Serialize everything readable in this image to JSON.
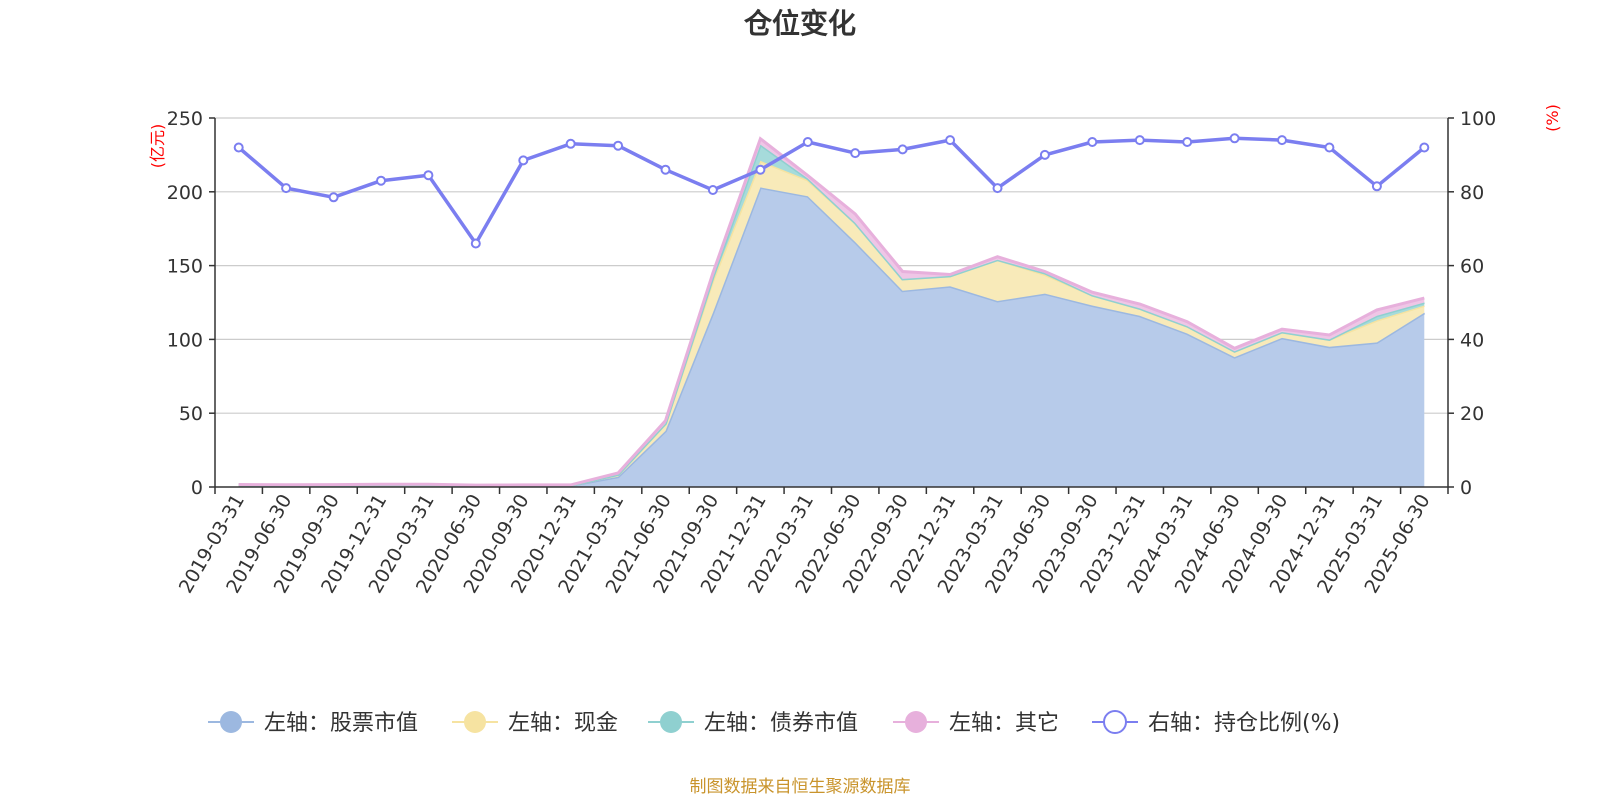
{
  "colors": {
    "stock": "#9cb8e0",
    "stock_fill": "#b7cbea",
    "cash": "#f6e3a1",
    "cash_fill": "#f8eab9",
    "bond": "#8fd0d0",
    "bond_fill": "#a6dbdb",
    "other": "#e7b0dc",
    "other_fill": "#efc6e6",
    "ratio": "#7b7ef0",
    "axis_unit": "#ff0000",
    "source": "#c9942c"
  },
  "chart_data": {
    "type": "area",
    "title": "仓位变化",
    "categories": [
      "2019-03-31",
      "2019-06-30",
      "2019-09-30",
      "2019-12-31",
      "2020-03-31",
      "2020-06-30",
      "2020-09-30",
      "2020-12-31",
      "2021-03-31",
      "2021-06-30",
      "2021-09-30",
      "2021-12-31",
      "2022-03-31",
      "2022-06-30",
      "2022-09-30",
      "2022-12-31",
      "2023-03-31",
      "2023-06-30",
      "2023-09-30",
      "2023-12-31",
      "2024-03-31",
      "2024-06-30",
      "2024-09-30",
      "2024-12-31",
      "2025-03-31",
      "2025-06-30"
    ],
    "left_axis": {
      "unit": "(亿元)",
      "ylim": [
        0,
        250
      ],
      "ticks": [
        "0",
        "50",
        "100",
        "150",
        "200",
        "250"
      ]
    },
    "right_axis": {
      "unit": "(%)",
      "ylim": [
        0,
        100
      ],
      "ticks": [
        "0",
        "20",
        "40",
        "60",
        "80",
        "100"
      ]
    },
    "series": [
      {
        "name": "左轴：股票市值",
        "axis": "left",
        "stacked": true,
        "values": [
          1.2,
          1.0,
          1.1,
          1.3,
          1.4,
          0.8,
          0.9,
          1.0,
          7,
          38,
          118,
          203,
          197,
          166,
          133,
          136,
          126,
          131,
          123,
          116,
          104,
          88,
          101,
          95,
          98,
          118
        ]
      },
      {
        "name": "左轴：现金",
        "axis": "left",
        "stacked": true,
        "values": [
          0.2,
          0.2,
          0.2,
          0.2,
          0.2,
          0.2,
          0.2,
          0.1,
          1.5,
          5,
          22,
          18,
          11,
          13,
          8,
          7,
          28,
          13,
          7,
          5,
          5,
          4,
          4,
          5,
          15,
          5
        ]
      },
      {
        "name": "左轴：债券市值",
        "axis": "left",
        "stacked": true,
        "values": [
          0,
          0,
          0,
          0,
          0,
          0,
          0,
          0,
          0,
          0,
          2,
          11,
          1,
          0,
          0,
          0,
          0,
          1,
          0,
          0,
          0,
          0,
          0,
          0,
          3,
          2
        ]
      },
      {
        "name": "左轴：其它",
        "axis": "left",
        "stacked": true,
        "values": [
          0.3,
          0.3,
          0.3,
          0.3,
          0.3,
          0.3,
          0.3,
          0.3,
          1,
          2,
          3,
          4,
          2,
          6,
          5,
          1,
          2,
          1,
          2,
          3,
          3,
          2,
          2,
          3,
          4,
          3
        ]
      },
      {
        "name": "右轴：持仓比例(%)",
        "axis": "right",
        "type": "line",
        "values": [
          92,
          81,
          78.5,
          83,
          84.5,
          66,
          88.5,
          93,
          92.5,
          86,
          80.5,
          86,
          93.5,
          90.5,
          91.5,
          94,
          81,
          90,
          93.5,
          94,
          93.5,
          94.5,
          94,
          92,
          81.5,
          92
        ]
      }
    ]
  },
  "source": "制图数据来自恒生聚源数据库"
}
